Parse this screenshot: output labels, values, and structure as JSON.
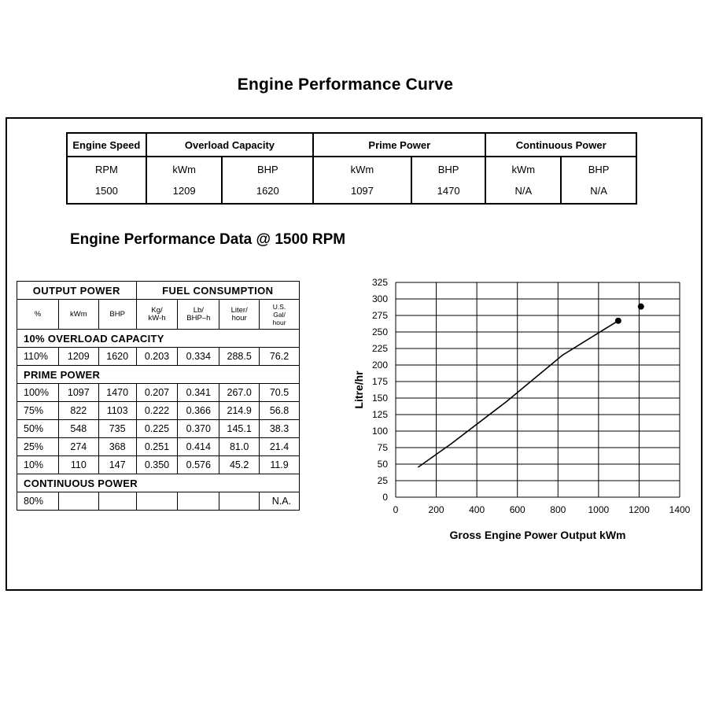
{
  "page_title": "Engine Performance Curve",
  "ratings_table": {
    "headers": [
      "Engine Speed",
      "Overload Capacity",
      "Prime Power",
      "Continuous Power"
    ],
    "units": [
      "RPM",
      "kWm",
      "BHP",
      "kWm",
      "BHP",
      "kWm",
      "BHP"
    ],
    "values": [
      "1500",
      "1209",
      "1620",
      "1097",
      "1470",
      "N/A",
      "N/A"
    ]
  },
  "section_title": "Engine Performance Data @ 1500 RPM",
  "perf_table": {
    "group_headers": [
      "OUTPUT POWER",
      "FUEL CONSUMPTION"
    ],
    "col_headers": [
      "%",
      "kWm",
      "BHP",
      "Kg/\nkW-h",
      "Lb/\nBHP–h",
      "Liter/\nhour",
      "U.S.\nGal/\nhour"
    ],
    "overload_label": "10% OVERLOAD CAPACITY",
    "overload_row": [
      "110%",
      "1209",
      "1620",
      "0.203",
      "0.334",
      "288.5",
      "76.2"
    ],
    "prime_label": "PRIME POWER",
    "prime_rows": [
      [
        "100%",
        "1097",
        "1470",
        "0.207",
        "0.341",
        "267.0",
        "70.5"
      ],
      [
        "75%",
        "822",
        "1103",
        "0.222",
        "0.366",
        "214.9",
        "56.8"
      ],
      [
        "50%",
        "548",
        "735",
        "0.225",
        "0.370",
        "145.1",
        "38.3"
      ],
      [
        "25%",
        "274",
        "368",
        "0.251",
        "0.414",
        "81.0",
        "21.4"
      ],
      [
        "10%",
        "110",
        "147",
        "0.350",
        "0.576",
        "45.2",
        "11.9"
      ]
    ],
    "continuous_label": "CONTINUOUS POWER",
    "continuous_row": [
      "80%",
      "",
      "",
      "",
      "",
      "",
      "N.A."
    ]
  },
  "chart_data": {
    "type": "line",
    "xlabel": "Gross Engine Power Output kWm",
    "ylabel": "Litre/hr",
    "xlim": [
      0,
      1400
    ],
    "ylim": [
      0,
      325
    ],
    "xticks": [
      0,
      200,
      400,
      600,
      800,
      1000,
      1200,
      1400
    ],
    "yticks": [
      0,
      25,
      50,
      75,
      100,
      125,
      150,
      175,
      200,
      225,
      250,
      275,
      300,
      325
    ],
    "grid": true,
    "series": [
      {
        "x": [
          110,
          274,
          548,
          822,
          1097
        ],
        "y": [
          45.2,
          81.0,
          145.1,
          214.9,
          267.0
        ]
      }
    ],
    "markers": [
      {
        "x": 1097,
        "y": 267.0
      },
      {
        "x": 1209,
        "y": 288.5
      }
    ],
    "line_color": "#000000",
    "grid_color": "#000000"
  }
}
